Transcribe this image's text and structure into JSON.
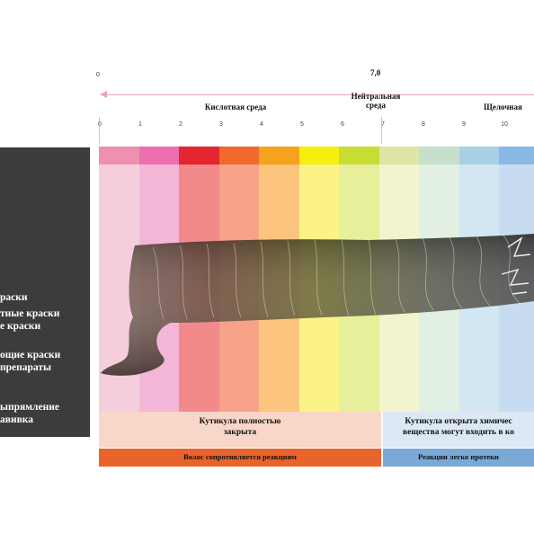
{
  "scale": {
    "left_zero": "0",
    "neutral_value": "7,0",
    "acid_label": "Кислотная среда",
    "neutral_label_line1": "Нейтральная",
    "neutral_label_line2": "среда",
    "alkaline_label": "Щелочная",
    "ticks": [
      "0",
      "1",
      "2",
      "3",
      "4",
      "5",
      "6",
      "7",
      "8",
      "9",
      "10"
    ]
  },
  "left_panel": {
    "lines": [
      "раски",
      "тные краски",
      "е краски",
      "ощие краски",
      "препараты",
      "ыпрямление",
      "авивка"
    ]
  },
  "columns": [
    {
      "top": "#ef8fb1",
      "body": "#f6cddd"
    },
    {
      "top": "#ee6fb0",
      "body": "#f4b6d6"
    },
    {
      "top": "#e3262f",
      "body": "#f28a8c"
    },
    {
      "top": "#ef6a2b",
      "body": "#f7a38a"
    },
    {
      "top": "#f5a21e",
      "body": "#fbc57d"
    },
    {
      "top": "#f6ee0e",
      "body": "#fcf387"
    },
    {
      "top": "#c9dc34",
      "body": "#e8ef9a"
    },
    {
      "top": "#dfe5a6",
      "body": "#f1f4cf"
    },
    {
      "top": "#c6e0cc",
      "body": "#e2efe3"
    },
    {
      "top": "#a8d1e6",
      "body": "#d2e7f1"
    },
    {
      "top": "#8ab8e4",
      "body": "#c8dcf1"
    },
    {
      "top": "#88b4e2",
      "body": "#c9dbf0"
    }
  ],
  "bottom": {
    "left_line1": "Кутикула полностью",
    "left_line2": "закрыта",
    "right_line1": "Кутикула открыта химичес",
    "right_line2": "вещества могут входить в ко",
    "left_bar": "Волос сопротивляется реакциям",
    "right_bar": "Реакции легко протеки",
    "left_bar_color": "#e8642a",
    "right_bar_color": "#7aa9d8",
    "left_box_color": "#f8d7c8",
    "right_box_color": "#dde8f5"
  }
}
